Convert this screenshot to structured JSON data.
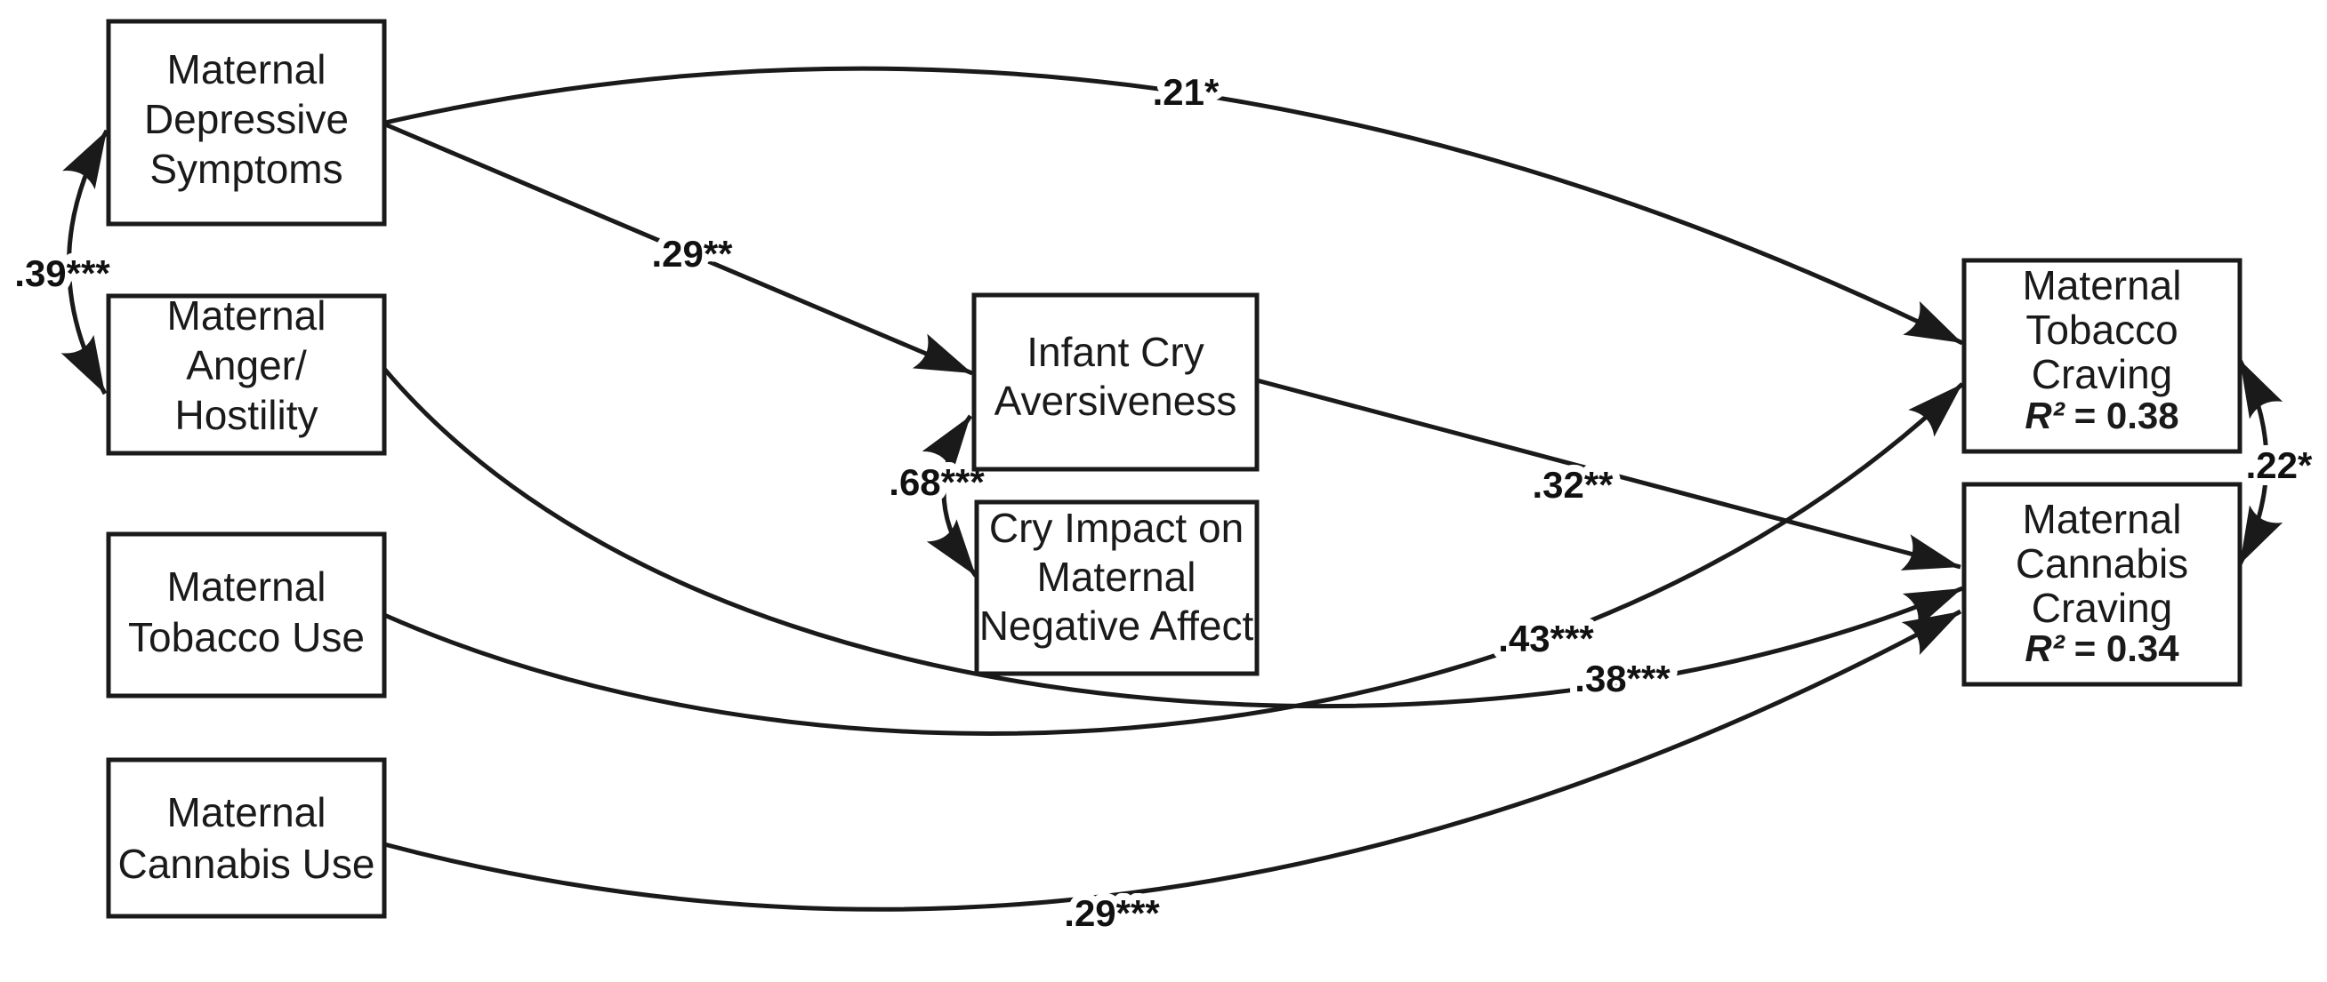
{
  "diagram": {
    "background_color": "#ffffff",
    "ink_color": "#1a1a1a",
    "nodes": [
      {
        "id": "maternal-depressive-symptoms",
        "lines": [
          "Maternal",
          "Depressive",
          "Symptoms"
        ]
      },
      {
        "id": "maternal-anger-hostility",
        "lines": [
          "Maternal",
          "Anger/",
          "Hostility"
        ]
      },
      {
        "id": "maternal-tobacco-use",
        "lines": [
          "Maternal",
          "Tobacco Use"
        ]
      },
      {
        "id": "maternal-cannabis-use",
        "lines": [
          "Maternal",
          "Cannabis Use"
        ]
      },
      {
        "id": "infant-cry-aversiveness",
        "lines": [
          "Infant Cry",
          "Aversiveness"
        ]
      },
      {
        "id": "cry-impact-negative-affect",
        "lines": [
          "Cry Impact on",
          "Maternal",
          "Negative Affect"
        ]
      },
      {
        "id": "maternal-tobacco-craving",
        "lines": [
          "Maternal",
          "Tobacco",
          "Craving"
        ],
        "r2_symbol": "R²",
        "r2_value": "= 0.38"
      },
      {
        "id": "maternal-cannabis-craving",
        "lines": [
          "Maternal",
          "Cannabis",
          "Craving"
        ],
        "r2_symbol": "R²",
        "r2_value": "= 0.34"
      }
    ],
    "paths": [
      {
        "from": "maternal-depressive-symptoms",
        "to": "maternal-tobacco-craving",
        "coefficient": ".21*"
      },
      {
        "from": "maternal-depressive-symptoms",
        "to": "infant-cry-aversiveness",
        "coefficient": ".29**"
      },
      {
        "from": "infant-cry-aversiveness",
        "to": "maternal-cannabis-craving",
        "coefficient": ".32**"
      },
      {
        "from": "maternal-tobacco-use",
        "to": "maternal-tobacco-craving",
        "coefficient": ".43***"
      },
      {
        "from": "maternal-anger-hostility",
        "to": "maternal-cannabis-craving",
        "coefficient": ".38***"
      },
      {
        "from": "maternal-cannabis-use",
        "to": "maternal-cannabis-craving",
        "coefficient": ".29***"
      }
    ],
    "correlations": [
      {
        "between": [
          "maternal-depressive-symptoms",
          "maternal-anger-hostility"
        ],
        "coefficient": ".39***"
      },
      {
        "between": [
          "infant-cry-aversiveness",
          "cry-impact-negative-affect"
        ],
        "coefficient": ".68***"
      },
      {
        "between": [
          "maternal-tobacco-craving",
          "maternal-cannabis-craving"
        ],
        "coefficient": ".22*"
      }
    ]
  }
}
